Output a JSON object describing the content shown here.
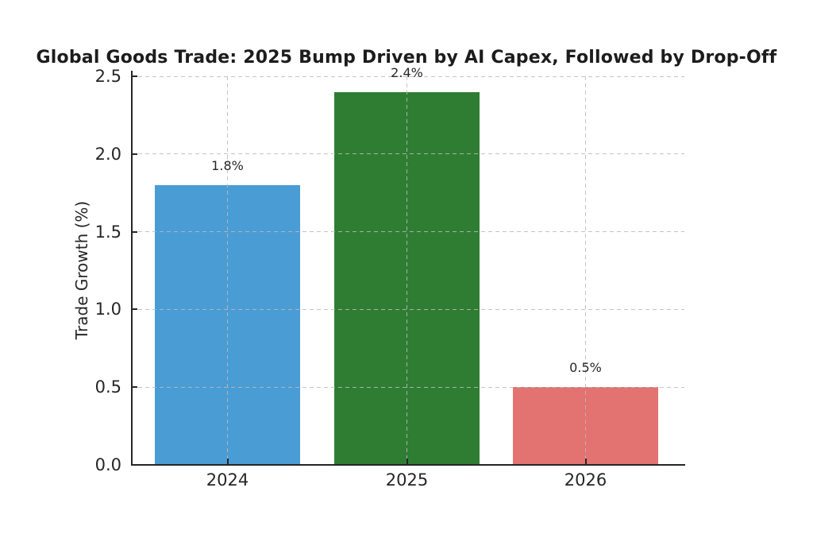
{
  "figure": {
    "background_color": "#ffffff",
    "text_color": "#262626"
  },
  "chart_data": {
    "type": "bar",
    "title": "Global Goods Trade: 2025 Bump Driven by AI Capex, Followed by Drop-Off",
    "xlabel": "",
    "ylabel": "Trade Growth (%)",
    "categories": [
      "2024",
      "2025",
      "2026"
    ],
    "values": [
      1.8,
      2.4,
      0.5
    ],
    "value_labels": [
      "1.8%",
      "2.4%",
      "0.5%"
    ],
    "bar_colors": [
      "#4A9CD4",
      "#2F7D33",
      "#E27371"
    ],
    "ylim": [
      0,
      2.5
    ],
    "yticks": [
      0.0,
      0.5,
      1.0,
      1.5,
      2.0,
      2.5
    ],
    "ytick_labels": [
      "0.0",
      "0.5",
      "1.0",
      "1.5",
      "2.0",
      "2.5"
    ],
    "grid": "dashed gridlines, horizontal at yticks and vertical at category centers, drawn over bars",
    "legend": "none",
    "spines": [
      "left",
      "bottom"
    ],
    "tick_direction": "in"
  }
}
